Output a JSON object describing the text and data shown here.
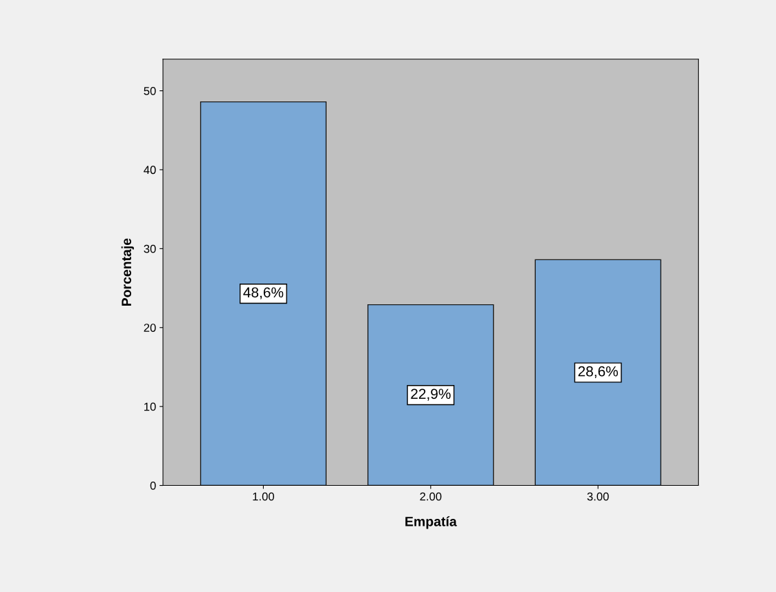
{
  "chart_data": {
    "type": "bar",
    "xlabel": "Empatía",
    "ylabel": "Porcentaje",
    "categories": [
      "1.00",
      "2.00",
      "3.00"
    ],
    "values": [
      48.6,
      22.9,
      28.6
    ],
    "value_labels": [
      "48,6%",
      "22,9%",
      "28,6%"
    ],
    "color": "#7aa8d6",
    "ylim": [
      0,
      54
    ],
    "yticks": [
      0,
      10,
      20,
      30,
      40,
      50
    ],
    "grid": false,
    "legend": false
  }
}
